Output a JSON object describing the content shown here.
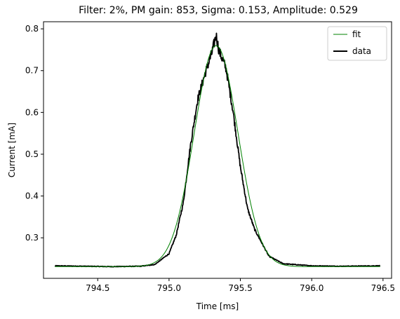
{
  "chart_data": {
    "type": "line",
    "title": "Filter: 2%, PM gain: 853, Sigma: 0.153, Amplitude: 0.529",
    "xlabel": "Time [ms]",
    "ylabel": "Current [mA]",
    "xlim": [
      794.12,
      796.56
    ],
    "ylim": [
      0.203,
      0.817
    ],
    "xticks": [
      794.5,
      795.0,
      795.5,
      796.0,
      796.5
    ],
    "xtick_labels": [
      "794.5",
      "795.0",
      "795.5",
      "796.0",
      "796.5"
    ],
    "yticks": [
      0.3,
      0.4,
      0.5,
      0.6,
      0.7,
      0.8
    ],
    "ytick_labels": [
      "0.3",
      "0.4",
      "0.5",
      "0.6",
      "0.7",
      "0.8"
    ],
    "grid": false,
    "legend_position": "top-right",
    "x_range": [
      794.2,
      796.48
    ],
    "series": [
      {
        "name": "fit",
        "color": "#008000",
        "kind": "gaussian",
        "baseline": 0.231,
        "amplitude": 0.529,
        "center": 795.33,
        "sigma": 0.153
      },
      {
        "name": "data",
        "color": "#000000",
        "kind": "measured",
        "x": [
          794.2,
          794.4,
          794.6,
          794.8,
          794.9,
          795.0,
          795.05,
          795.1,
          795.15,
          795.2,
          795.25,
          795.3,
          795.33,
          795.35,
          795.4,
          795.45,
          795.5,
          795.55,
          795.6,
          795.7,
          795.8,
          796.0,
          796.2,
          796.48
        ],
        "y": [
          0.233,
          0.232,
          0.231,
          0.232,
          0.236,
          0.262,
          0.306,
          0.384,
          0.52,
          0.63,
          0.69,
          0.742,
          0.785,
          0.748,
          0.705,
          0.6,
          0.47,
          0.37,
          0.32,
          0.256,
          0.238,
          0.233,
          0.232,
          0.233
        ]
      }
    ]
  }
}
